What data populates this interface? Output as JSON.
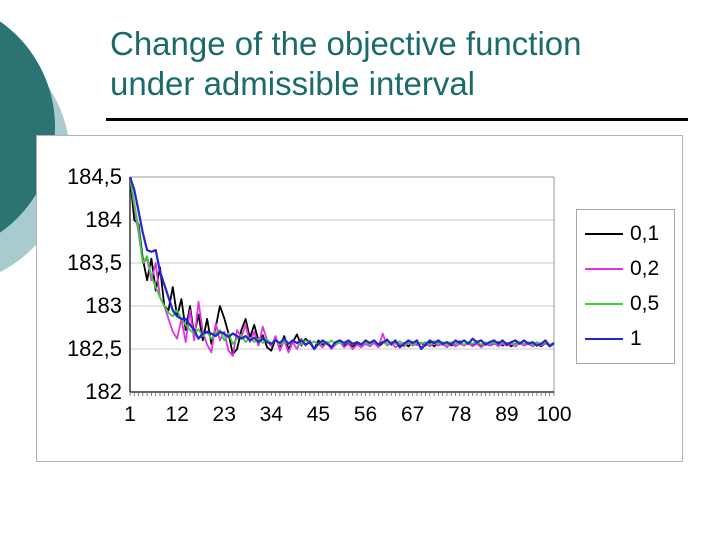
{
  "slide": {
    "title_line1": "Change of the objective function",
    "title_line2": "under admissible interval",
    "title_color": "#1C6B6B",
    "underline_color": "#000000",
    "decor_dark_color": "#2C7373",
    "decor_light_color": "#A8CBCD"
  },
  "chart_data": {
    "type": "line",
    "title": "",
    "xlabel": "",
    "ylabel": "",
    "xlim": [
      1,
      100
    ],
    "ylim": [
      182,
      184.5
    ],
    "n_points": 100,
    "grid": true,
    "legend_position": "right",
    "decimal_separator": ",",
    "x_tick_positions": [
      1,
      12,
      23,
      34,
      45,
      56,
      67,
      78,
      89,
      100
    ],
    "x_tick_labels": [
      "1",
      "12",
      "23",
      "34",
      "45",
      "56",
      "67",
      "78",
      "89",
      "100"
    ],
    "y_ticks": [
      184.5,
      184,
      183.5,
      183,
      182.5,
      182
    ],
    "y_tick_labels": [
      "184,5",
      "184",
      "183,5",
      "183",
      "182,5",
      "182"
    ],
    "axis_color": "#333333",
    "gridline_color": "#c9c9c9",
    "frame_color": "#999999",
    "tick_color": "#666666",
    "series": [
      {
        "name": "0,1",
        "color": "#000000",
        "width": 1.8,
        "values": [
          184.5,
          184.0,
          183.95,
          183.55,
          183.3,
          183.55,
          183.18,
          183.45,
          183.0,
          182.95,
          183.22,
          182.88,
          183.08,
          182.72,
          183.0,
          182.66,
          182.9,
          182.6,
          182.85,
          182.56,
          182.75,
          183.0,
          182.86,
          182.68,
          182.44,
          182.5,
          182.72,
          182.85,
          182.63,
          182.78,
          182.6,
          182.66,
          182.52,
          182.48,
          182.62,
          182.53,
          182.65,
          182.5,
          182.58,
          182.67,
          182.54,
          182.62,
          182.57,
          182.5,
          182.6,
          182.55,
          182.58,
          182.52,
          182.56,
          182.6,
          182.54,
          182.58,
          182.53,
          182.57,
          182.55,
          182.6,
          182.54,
          182.58,
          182.53,
          182.57,
          182.61,
          182.55,
          182.58,
          182.54,
          182.57,
          182.53,
          182.58,
          182.55,
          182.57,
          182.54,
          182.58,
          182.53,
          182.57,
          182.55,
          182.58,
          182.54,
          182.56,
          182.59,
          182.54,
          182.57,
          182.55,
          182.58,
          182.53,
          182.57,
          182.54,
          182.56,
          182.58,
          182.54,
          182.57,
          182.53,
          182.56,
          182.58,
          182.54,
          182.57,
          182.55,
          182.56,
          182.53,
          182.57,
          182.54,
          182.57
        ]
      },
      {
        "name": "0,2",
        "color": "#E232E2",
        "width": 1.8,
        "values": [
          184.5,
          184.15,
          183.85,
          183.5,
          183.55,
          183.3,
          183.5,
          183.1,
          183.0,
          182.85,
          182.7,
          182.62,
          182.85,
          182.58,
          182.95,
          182.6,
          183.05,
          182.7,
          182.55,
          182.46,
          182.8,
          182.6,
          182.7,
          182.48,
          182.42,
          182.72,
          182.64,
          182.78,
          182.58,
          182.7,
          182.54,
          182.76,
          182.6,
          182.53,
          182.65,
          182.48,
          182.6,
          182.46,
          182.58,
          182.5,
          182.62,
          182.54,
          182.6,
          182.5,
          182.56,
          182.52,
          182.58,
          182.5,
          182.55,
          182.58,
          182.52,
          182.56,
          182.5,
          182.55,
          182.52,
          182.56,
          182.53,
          182.57,
          182.52,
          182.68,
          182.54,
          182.57,
          182.52,
          182.56,
          182.53,
          182.57,
          182.54,
          182.56,
          182.52,
          182.56,
          182.53,
          182.57,
          182.54,
          182.56,
          182.52,
          182.57,
          182.53,
          182.56,
          182.54,
          182.57,
          182.53,
          182.56,
          182.52,
          182.56,
          182.54,
          182.57,
          182.53,
          182.56,
          182.54,
          182.56,
          182.53,
          182.57,
          182.54,
          182.56,
          182.53,
          182.56,
          182.54,
          182.57,
          182.53,
          182.56
        ]
      },
      {
        "name": "0,5",
        "color": "#3BCF3B",
        "width": 1.8,
        "values": [
          184.5,
          184.2,
          183.9,
          183.5,
          183.58,
          183.35,
          183.22,
          183.1,
          183.0,
          182.92,
          182.88,
          182.95,
          182.85,
          182.78,
          182.72,
          182.68,
          182.73,
          182.65,
          182.7,
          182.62,
          182.68,
          182.72,
          182.6,
          182.68,
          182.56,
          182.62,
          182.66,
          182.58,
          182.63,
          182.58,
          182.62,
          182.57,
          182.61,
          182.56,
          182.6,
          182.55,
          182.59,
          182.56,
          182.6,
          182.57,
          182.55,
          182.6,
          182.56,
          182.59,
          182.55,
          182.58,
          182.56,
          182.6,
          182.55,
          182.58,
          182.56,
          182.59,
          182.55,
          182.58,
          182.56,
          182.58,
          182.55,
          182.59,
          182.56,
          182.58,
          182.55,
          182.58,
          182.56,
          182.59,
          182.55,
          182.58,
          182.55,
          182.58,
          182.56,
          182.58,
          182.55,
          182.59,
          182.56,
          182.58,
          182.55,
          182.58,
          182.56,
          182.58,
          182.55,
          182.58,
          182.56,
          182.59,
          182.55,
          182.58,
          182.56,
          182.58,
          182.55,
          182.58,
          182.56,
          182.58,
          182.55,
          182.58,
          182.56,
          182.58,
          182.55,
          182.58,
          182.56,
          182.58,
          182.55,
          182.57
        ]
      },
      {
        "name": "1",
        "color": "#2626CE",
        "width": 2.2,
        "values": [
          184.5,
          184.35,
          184.1,
          183.85,
          183.65,
          183.63,
          183.65,
          183.4,
          183.25,
          183.1,
          182.95,
          182.88,
          182.85,
          182.85,
          182.78,
          182.72,
          182.62,
          182.68,
          182.7,
          182.68,
          182.65,
          182.7,
          182.68,
          182.64,
          182.68,
          182.65,
          182.62,
          182.65,
          182.6,
          182.63,
          182.58,
          182.62,
          182.58,
          182.56,
          182.6,
          182.57,
          182.62,
          182.56,
          182.6,
          182.57,
          182.6,
          182.55,
          182.58,
          182.5,
          182.56,
          182.6,
          182.56,
          182.52,
          182.58,
          182.6,
          182.57,
          182.6,
          182.56,
          182.58,
          182.55,
          182.6,
          182.57,
          182.6,
          182.55,
          182.58,
          182.6,
          182.56,
          182.6,
          182.52,
          182.56,
          182.6,
          182.57,
          182.6,
          182.5,
          182.55,
          182.6,
          182.57,
          182.6,
          182.56,
          182.58,
          182.55,
          182.6,
          182.57,
          182.6,
          182.56,
          182.62,
          182.58,
          182.6,
          182.55,
          182.58,
          182.6,
          182.56,
          182.6,
          182.55,
          182.58,
          182.6,
          182.56,
          182.6,
          182.56,
          182.58,
          182.54,
          182.56,
          182.6,
          182.53,
          182.57
        ]
      }
    ]
  }
}
